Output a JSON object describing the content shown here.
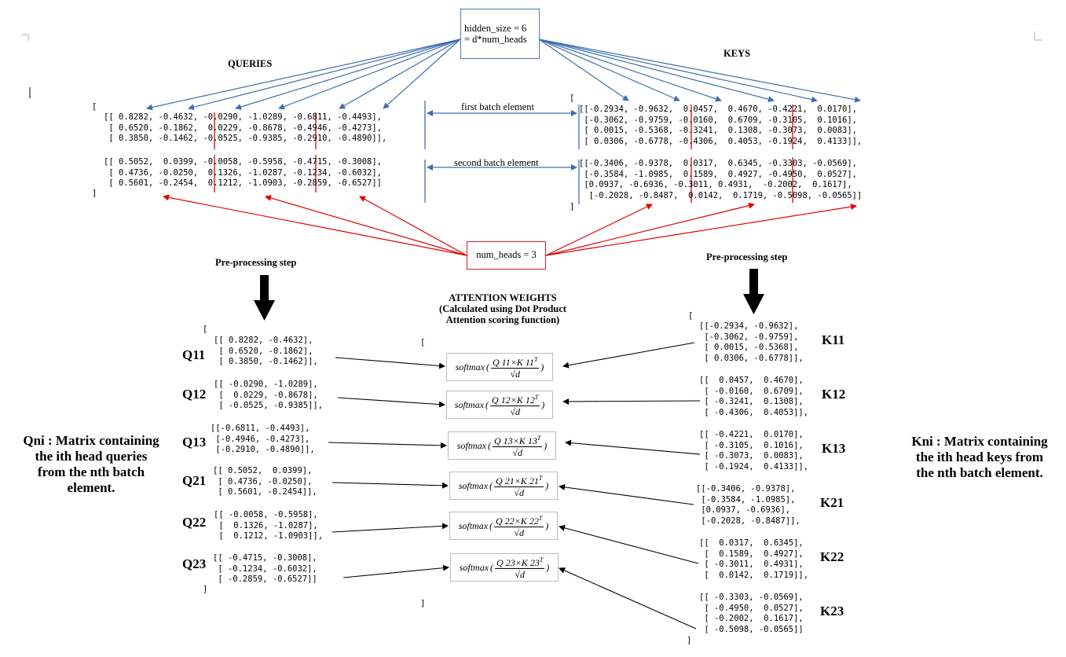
{
  "hidden_size_box": {
    "line1": "hidden_size = 6",
    "line2": "= d*num_heads"
  },
  "num_heads_box": "num_heads = 3",
  "queries_title": "QUERIES",
  "keys_title": "KEYS",
  "first_batch_label": "first batch element",
  "second_batch_label": "second batch element",
  "preprocessing_left": "Pre-processing step",
  "preprocessing_right": "Pre-processing step",
  "attention": {
    "title": "ATTENTION WEIGHTS",
    "subtitle1": "(Calculated using Dot Product",
    "subtitle2": "Attention scoring function)",
    "open_bracket": "[",
    "close_bracket": "]",
    "softmax": "softmax",
    "den": "√d",
    "formulas": [
      "Q 11×K 11",
      "Q 12×K 12",
      "Q 13×K 13",
      "Q 21×K 21",
      "Q 22×K 22",
      "Q 23×K 23"
    ],
    "transpose": "T"
  },
  "queries_matrix": {
    "open": "[",
    "close": "]",
    "batch1": [
      "[[ 0.8282, -0.4632, -0.0290, -1.0289, -0.6811, -0.4493],",
      " [ 0.6520, -0.1862,  0.0229, -0.8678, -0.4946, -0.4273],",
      " [ 0.3850, -0.1462, -0.0525, -0.9385, -0.2910, -0.4890]],"
    ],
    "batch2": [
      "[[ 0.5052,  0.0399, -0.0058, -0.5958, -0.4715, -0.3008],",
      " [ 0.4736, -0.0250,  0.1326, -1.0287, -0.1234, -0.6032],",
      " [ 0.5601, -0.2454,  0.1212, -1.0903, -0.2859, -0.6527]]"
    ]
  },
  "keys_matrix": {
    "open": "[",
    "close": "]",
    "batch1": [
      "[[-0.2934, -0.9632,  0.0457,  0.4670, -0.4221,  0.0170],",
      " [-0.3062, -0.9759, -0.0160,  0.6709, -0.3105,  0.1016],",
      " [ 0.0015, -0.5368, -0.3241,  0.1308, -0.3073,  0.0083],",
      " [ 0.0306, -0.6778, -0.4306,  0.4053, -0.1924,  0.4133]],"
    ],
    "batch2": [
      "[[-0.3406, -0.9378,  0.0317,  0.6345, -0.3303, -0.0569],",
      " [-0.3584, -1.0985,  0.1589,  0.4927, -0.4950,  0.0527],",
      " [0.0937, -0.6936, -0.3011, 0.4931,  -0.2002,  0.1617],",
      "  [-0.2028, -0.8487,  0.0142,  0.1719, -0.5098, -0.0565]]"
    ]
  },
  "q_heads": {
    "open": "[",
    "close": "]",
    "items": [
      {
        "label": "Q11",
        "rows": [
          "[[ 0.8282, -0.4632],",
          " [ 0.6520, -0.1862],",
          " [ 0.3850, -0.1462]],"
        ]
      },
      {
        "label": "Q12",
        "rows": [
          "[[ -0.0290, -1.0289],",
          " [  0.0229, -0.8678],",
          " [ -0.0525, -0.9385]],"
        ]
      },
      {
        "label": "Q13",
        "rows": [
          "[[-0.6811, -0.4493],",
          " [-0.4946, -0.4273],",
          " [-0.2910, -0.4890]],"
        ]
      },
      {
        "label": "Q21",
        "rows": [
          "[[ 0.5052,  0.0399],",
          " [ 0.4736, -0.0250],",
          " [ 0.5601, -0.2454]],"
        ]
      },
      {
        "label": "Q22",
        "rows": [
          "[[ -0.0058, -0.5958],",
          " [  0.1326, -1.0287],",
          " [  0.1212, -1.0903]],"
        ]
      },
      {
        "label": "Q23",
        "rows": [
          "[[ -0.4715, -0.3008],",
          " [ -0.1234, -0.6032],",
          " [ -0.2859, -0.6527]]"
        ]
      }
    ]
  },
  "k_heads": {
    "open": "[",
    "close": "]",
    "items": [
      {
        "label": "K11",
        "rows": [
          "[[-0.2934, -0.9632],",
          " [-0.3062, -0.9759],",
          " [ 0.0015, -0.5368],",
          " [ 0.0306, -0.6778]],"
        ]
      },
      {
        "label": "K12",
        "rows": [
          "[[  0.0457,  0.4670],",
          " [ -0.0160,  0.6709],",
          " [ -0.3241,  0.1308],",
          " [ -0.4306,  0.4053]],"
        ]
      },
      {
        "label": "K13",
        "rows": [
          "[[ -0.4221,  0.0170],",
          " [ -0.3105,  0.1016],",
          " [ -0.3073,  0.0083],",
          " [ -0.1924,  0.4133]],"
        ]
      },
      {
        "label": "K21",
        "rows": [
          "[[-0.3406, -0.9378],",
          " [-0.3584, -1.0985],",
          " [0.0937, -0.6936],",
          " [-0.2028, -0.8487]],"
        ]
      },
      {
        "label": "K22",
        "rows": [
          "[[  0.0317,  0.6345],",
          " [  0.1589,  0.4927],",
          " [ -0.3011,  0.4931],",
          " [  0.0142,  0.1719]],"
        ]
      },
      {
        "label": "K23",
        "rows": [
          "[[ -0.3303, -0.0569],",
          " [ -0.4950,  0.0527],",
          " [ -0.2002,  0.1617],",
          " [ -0.5098, -0.0565]]"
        ]
      }
    ]
  },
  "qni_desc": [
    "Qni : Matrix containing",
    "the ith head queries",
    "from the nth batch",
    "element."
  ],
  "kni_desc": [
    "Kni : Matrix containing",
    "the ith head keys from",
    "the nth batch element."
  ],
  "colors": {
    "blue": "#3e6fb0",
    "red": "#e00000",
    "box_blue": "#4a7ab5",
    "box_red": "#d62020"
  }
}
